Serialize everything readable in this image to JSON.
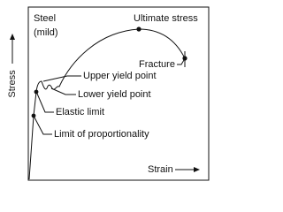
{
  "material": [
    "Steel",
    "(mild)"
  ],
  "axes": {
    "y": "Stress",
    "x": "Strain"
  },
  "points": [
    "Ultimate stress",
    "Fracture",
    "Upper yield point",
    "Lower yield point",
    "Elastic limit",
    "Limit of proportionality"
  ]
}
